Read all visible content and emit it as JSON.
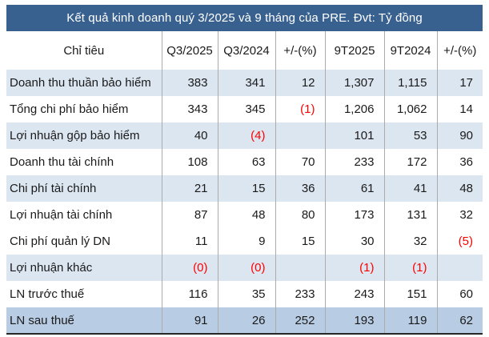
{
  "colors": {
    "title_bg": "#38618F",
    "title_text": "#FFFFFF",
    "band_blue": "#DCE6F1",
    "total_row": "#B8CCE4",
    "negative": "#FF0000",
    "grid_line": "#ABABAB",
    "bottom_border": "#262626",
    "text": "#1A1A1A"
  },
  "chart_data": {
    "type": "table",
    "title": "Kết quả kinh doanh quý 3/2025 và 9 tháng của PRE. Đvt: Tỷ đồng",
    "unit": "Tỷ đồng",
    "columns": [
      "Chỉ tiêu",
      "Q3/2025",
      "Q3/2024",
      "+/-(%)",
      "9T2025",
      "9T2024",
      "+/-(%)"
    ],
    "rows": [
      {
        "label": "Doanh thu thuần bảo hiểm",
        "values": [
          "383",
          "341",
          "12",
          "1,307",
          "1,115",
          "17"
        ],
        "band": "blue"
      },
      {
        "label": "Tổng chi phí bảo hiểm",
        "values": [
          "343",
          "345",
          "(1)",
          "1,206",
          "1,062",
          "14"
        ],
        "band": "white"
      },
      {
        "label": "Lợi nhuận gộp  bảo hiểm",
        "values": [
          "40",
          "(4)",
          "",
          "101",
          "53",
          "90"
        ],
        "band": "blue"
      },
      {
        "label": "Doanh thu tài chính",
        "values": [
          "108",
          "63",
          "70",
          "233",
          "172",
          "36"
        ],
        "band": "white"
      },
      {
        "label": "Chi phí tài chính",
        "values": [
          "21",
          "15",
          "36",
          "61",
          "41",
          "48"
        ],
        "band": "blue"
      },
      {
        "label": "Lợi nhuận tài chính",
        "values": [
          "87",
          "48",
          "80",
          "173",
          "131",
          "32"
        ],
        "band": "white"
      },
      {
        "label": "Chi phí quản lý DN",
        "values": [
          "11",
          "9",
          "15",
          "30",
          "32",
          "(5)"
        ],
        "band": "white"
      },
      {
        "label": "Lợi nhuận khác",
        "values": [
          "(0)",
          "(0)",
          "",
          "(1)",
          "(1)",
          ""
        ],
        "band": "blue"
      },
      {
        "label": "LN trước thuế",
        "values": [
          "116",
          "35",
          "233",
          "243",
          "151",
          "60"
        ],
        "band": "white"
      },
      {
        "label": "LN sau thuế",
        "values": [
          "91",
          "26",
          "252",
          "193",
          "119",
          "62"
        ],
        "band": "total"
      }
    ]
  }
}
